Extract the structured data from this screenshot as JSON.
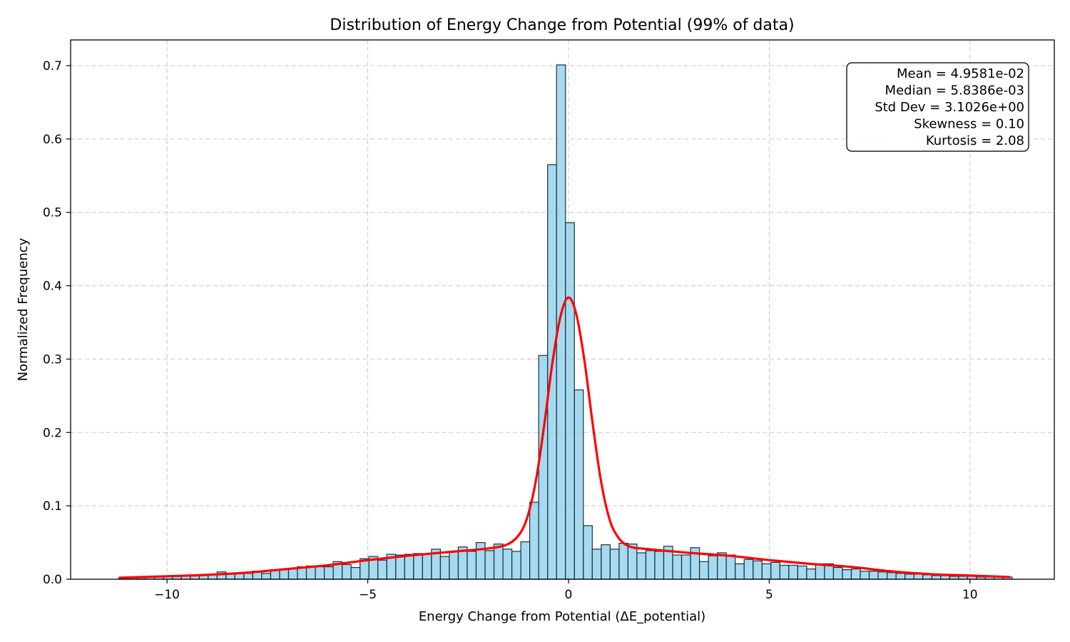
{
  "chart_data": {
    "type": "bar",
    "title": "Distribution of Energy Change from Potential (99% of data)",
    "xlabel": "Energy Change from Potential (ΔE_potential)",
    "ylabel": "Normalized Frequency",
    "xlim": [
      -12.4,
      12.1
    ],
    "ylim": [
      0,
      0.735
    ],
    "xticks": [
      -10,
      -5,
      0,
      5,
      10
    ],
    "xtick_labels": [
      "−10",
      "−5",
      "0",
      "5",
      "10"
    ],
    "yticks": [
      0.0,
      0.1,
      0.2,
      0.3,
      0.4,
      0.5,
      0.6,
      0.7
    ],
    "ytick_labels": [
      "0.0",
      "0.1",
      "0.2",
      "0.3",
      "0.4",
      "0.5",
      "0.6",
      "0.7"
    ],
    "grid": true,
    "bins": {
      "start": -11.2,
      "width": 0.2225,
      "values": [
        0.002,
        0.002,
        0.002,
        0.003,
        0.003,
        0.004,
        0.004,
        0.005,
        0.006,
        0.006,
        0.007,
        0.01,
        0.008,
        0.008,
        0.008,
        0.011,
        0.008,
        0.013,
        0.014,
        0.014,
        0.017,
        0.018,
        0.017,
        0.017,
        0.024,
        0.02,
        0.016,
        0.028,
        0.031,
        0.026,
        0.034,
        0.033,
        0.034,
        0.035,
        0.034,
        0.041,
        0.031,
        0.038,
        0.044,
        0.038,
        0.05,
        0.039,
        0.048,
        0.041,
        0.038,
        0.051,
        0.105,
        0.305,
        0.565,
        0.701,
        0.486,
        0.258,
        0.073,
        0.041,
        0.047,
        0.041,
        0.049,
        0.048,
        0.036,
        0.039,
        0.038,
        0.045,
        0.033,
        0.033,
        0.043,
        0.024,
        0.032,
        0.036,
        0.033,
        0.021,
        0.027,
        0.025,
        0.021,
        0.023,
        0.019,
        0.019,
        0.018,
        0.014,
        0.021,
        0.021,
        0.016,
        0.013,
        0.014,
        0.011,
        0.011,
        0.01,
        0.009,
        0.008,
        0.007,
        0.007,
        0.006,
        0.005,
        0.005,
        0.004,
        0.004,
        0.004,
        0.003,
        0.003,
        0.003,
        0.003
      ],
      "fill": "#87ceeb",
      "edge": "#1f2f3a"
    },
    "kde": {
      "color": "#ff0000",
      "x": [
        -11.2,
        -10,
        -9,
        -8,
        -7,
        -6,
        -5,
        -4,
        -3,
        -2,
        -1.5,
        -1.2,
        -1,
        -0.8,
        -0.6,
        -0.4,
        -0.2,
        0,
        0.2,
        0.4,
        0.6,
        0.8,
        1,
        1.2,
        1.5,
        2,
        3,
        4,
        5,
        6,
        7,
        8,
        9,
        10,
        11
      ],
      "y": [
        0.002,
        0.004,
        0.006,
        0.009,
        0.014,
        0.019,
        0.026,
        0.032,
        0.037,
        0.042,
        0.048,
        0.063,
        0.089,
        0.138,
        0.212,
        0.295,
        0.358,
        0.384,
        0.36,
        0.297,
        0.213,
        0.137,
        0.086,
        0.06,
        0.045,
        0.041,
        0.036,
        0.032,
        0.026,
        0.021,
        0.017,
        0.011,
        0.007,
        0.005,
        0.003
      ]
    },
    "stats_box": {
      "position": "top-right",
      "lines": [
        "Mean = 4.9581e-02",
        "Median = 5.8386e-03",
        "Std Dev = 3.1026e+00",
        "Skewness = 0.10",
        "Kurtosis = 2.08"
      ]
    }
  }
}
